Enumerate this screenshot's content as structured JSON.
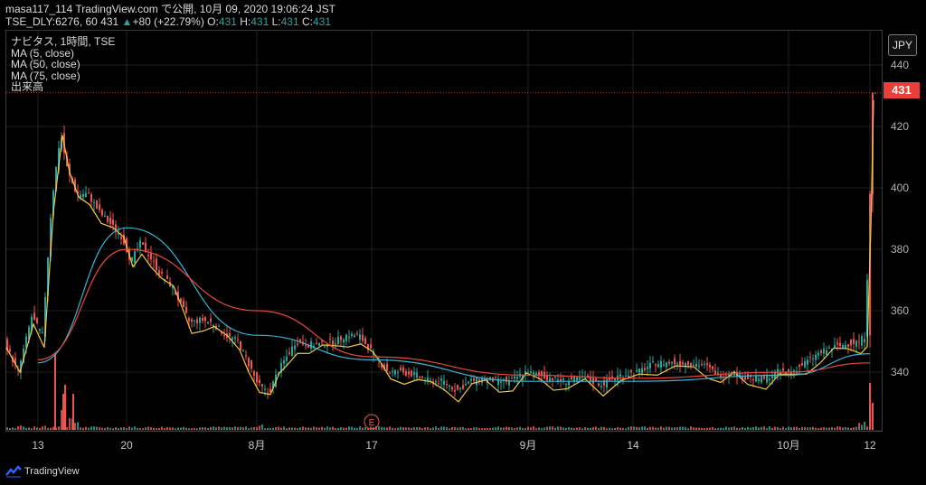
{
  "header": {
    "publisher": "masa117_114",
    "site": "TradingView.com",
    "published": "で公開, 10月 09, 2020 19:06:24 JST",
    "symbol_line_prefix": "TSE_DLY:6276, 60 431",
    "change": "+80 (+22.79%)",
    "ohlc_o_label": "O:",
    "ohlc_o": "431",
    "ohlc_h_label": "H:",
    "ohlc_h": "431",
    "ohlc_l_label": "L:",
    "ohlc_l": "431",
    "ohlc_c_label": "C:",
    "ohlc_c": "431"
  },
  "legend": {
    "title": "ナビタス, 1時間, TSE",
    "ma5": "MA (5, close)",
    "ma50": "MA (50, close)",
    "ma75": "MA (75, close)",
    "volume": "出来高"
  },
  "currency": "JPY",
  "last_price_label": "431",
  "earnings_marker": "E",
  "brand": "TradingView",
  "colors": {
    "background": "#000000",
    "up": "#26a69a",
    "down": "#ef5350",
    "ma5": "#f2c744",
    "ma50": "#39b4d6",
    "ma75": "#e8463d",
    "grid": "#1f1f1f",
    "last_price": "#e83f3a"
  },
  "chart_data": {
    "type": "candlestick",
    "title": "ナビタス, 1時間, TSE",
    "x_ticks": [
      "13",
      "20",
      "8月",
      "17",
      "9月",
      "14",
      "10月",
      "12"
    ],
    "y_ticks": [
      340,
      360,
      380,
      400,
      420,
      440
    ],
    "ylim": [
      322,
      449
    ],
    "last_price": 431,
    "grid": true,
    "series": [
      {
        "name": "MA (5, close)",
        "x": [
          "13",
          "20",
          "8月",
          "17",
          "9月",
          "14",
          "10月",
          "12"
        ],
        "values": [
          346,
          380,
          333,
          348,
          337,
          342,
          340,
          383
        ]
      },
      {
        "name": "MA (50, close)",
        "x": [
          "13",
          "20",
          "8月",
          "17",
          "9月",
          "14",
          "10月",
          "12"
        ],
        "values": [
          343,
          387,
          352,
          344,
          337,
          337,
          339,
          346
        ]
      },
      {
        "name": "MA (75, close)",
        "x": [
          "13",
          "20",
          "8月",
          "17",
          "9月",
          "14",
          "10月",
          "12"
        ],
        "values": [
          344,
          380,
          360,
          345,
          339,
          338,
          340,
          343
        ]
      }
    ],
    "close_path": [
      [
        0,
        350
      ],
      [
        15,
        340
      ],
      [
        30,
        358
      ],
      [
        42,
        352
      ],
      [
        52,
        395
      ],
      [
        62,
        418
      ],
      [
        70,
        405
      ],
      [
        80,
        398
      ],
      [
        92,
        398
      ],
      [
        105,
        392
      ],
      [
        118,
        388
      ],
      [
        130,
        384
      ],
      [
        140,
        376
      ],
      [
        150,
        382
      ],
      [
        160,
        378
      ],
      [
        172,
        372
      ],
      [
        185,
        368
      ],
      [
        195,
        362
      ],
      [
        205,
        356
      ],
      [
        218,
        357
      ],
      [
        230,
        356
      ],
      [
        245,
        352
      ],
      [
        258,
        350
      ],
      [
        268,
        344
      ],
      [
        280,
        336
      ],
      [
        292,
        333
      ],
      [
        302,
        340
      ],
      [
        312,
        345
      ],
      [
        322,
        350
      ],
      [
        335,
        349
      ],
      [
        350,
        349
      ],
      [
        365,
        350
      ],
      [
        378,
        352
      ],
      [
        392,
        352
      ],
      [
        405,
        347
      ],
      [
        415,
        343
      ],
      [
        425,
        340
      ],
      [
        440,
        340
      ],
      [
        455,
        339
      ],
      [
        470,
        337
      ],
      [
        485,
        337
      ],
      [
        500,
        334
      ],
      [
        515,
        337
      ],
      [
        530,
        338
      ],
      [
        545,
        337
      ],
      [
        560,
        337
      ],
      [
        575,
        340
      ],
      [
        590,
        339
      ],
      [
        605,
        338
      ],
      [
        620,
        337
      ],
      [
        640,
        338
      ],
      [
        660,
        336
      ],
      [
        680,
        339
      ],
      [
        700,
        340
      ],
      [
        720,
        343
      ],
      [
        740,
        343
      ],
      [
        760,
        343
      ],
      [
        775,
        342
      ],
      [
        790,
        339
      ],
      [
        805,
        340
      ],
      [
        820,
        338
      ],
      [
        840,
        338
      ],
      [
        855,
        340
      ],
      [
        870,
        340
      ],
      [
        885,
        343
      ],
      [
        900,
        346
      ],
      [
        915,
        348
      ],
      [
        930,
        349
      ],
      [
        945,
        350
      ],
      [
        952,
        352
      ],
      [
        956,
        390
      ],
      [
        959,
        431
      ]
    ],
    "volume_profile": [
      [
        15,
        2
      ],
      [
        40,
        1.5
      ],
      [
        62,
        10
      ],
      [
        70,
        6
      ],
      [
        75,
        4
      ],
      [
        140,
        1.5
      ],
      [
        280,
        2
      ],
      [
        410,
        2
      ],
      [
        580,
        1.5
      ],
      [
        700,
        1.5
      ],
      [
        880,
        1.5
      ],
      [
        945,
        3
      ],
      [
        959,
        16
      ]
    ]
  }
}
